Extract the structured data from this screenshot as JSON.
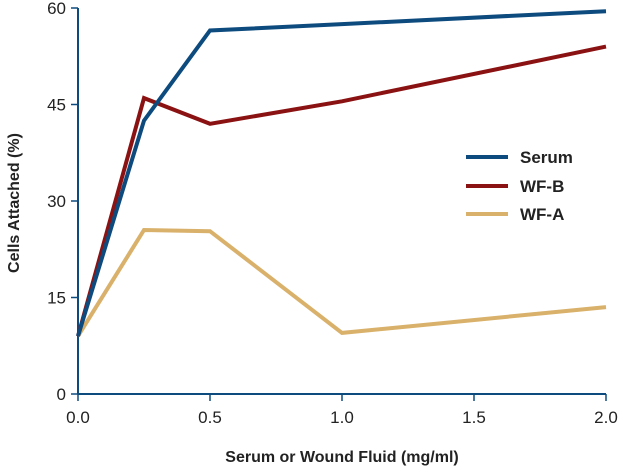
{
  "chart_data": {
    "type": "line",
    "title": "",
    "xlabel": "Serum or Wound Fluid (mg/ml)",
    "ylabel": "Cells Attached (%)",
    "xlim": [
      0,
      2
    ],
    "ylim": [
      0,
      60
    ],
    "x_ticks": [
      "0.0",
      "0.5",
      "1.0",
      "1.5",
      "2.0"
    ],
    "y_ticks": [
      "0",
      "15",
      "30",
      "45",
      "60"
    ],
    "grid": false,
    "legend_position": "right",
    "series": [
      {
        "name": "Serum",
        "color": "#0d4a7e",
        "x": [
          0,
          0.25,
          0.5,
          1.0,
          2.0
        ],
        "y": [
          9,
          42.5,
          56.5,
          57.5,
          59.5
        ]
      },
      {
        "name": "WF-B",
        "color": "#8b1212",
        "x": [
          0,
          0.25,
          0.5,
          1.0,
          2.0
        ],
        "y": [
          9,
          46,
          42,
          45.5,
          54
        ]
      },
      {
        "name": "WF-A",
        "color": "#d9b16a",
        "x": [
          0,
          0.25,
          0.5,
          1.0,
          2.0
        ],
        "y": [
          9,
          25.5,
          25.3,
          9.5,
          13.5
        ]
      }
    ]
  }
}
